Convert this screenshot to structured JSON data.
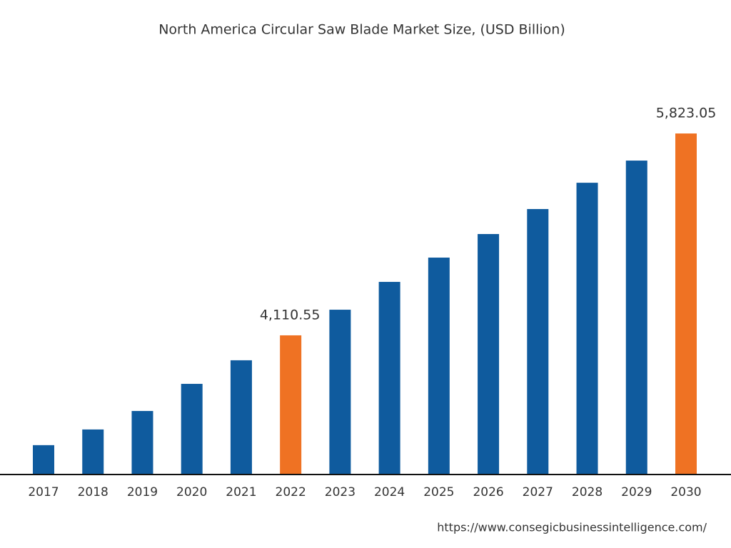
{
  "chart_data": {
    "type": "bar",
    "title": "North America Circular Saw Blade Market Size, (USD Billion)",
    "categories": [
      "2017",
      "2018",
      "2019",
      "2020",
      "2021",
      "2022",
      "2023",
      "2024",
      "2025",
      "2026",
      "2027",
      "2028",
      "2029",
      "2030"
    ],
    "values": [
      3179,
      3312,
      3469,
      3699,
      3899,
      4110.55,
      4328,
      4564,
      4770,
      4970,
      5182,
      5405,
      5593,
      5823.05
    ],
    "value_labels": [
      null,
      null,
      null,
      null,
      null,
      "4,110.55",
      null,
      null,
      null,
      null,
      null,
      null,
      null,
      "5,823.05"
    ],
    "colors": [
      "#0f5b9e",
      "#0f5b9e",
      "#0f5b9e",
      "#0f5b9e",
      "#0f5b9e",
      "#ef7223",
      "#0f5b9e",
      "#0f5b9e",
      "#0f5b9e",
      "#0f5b9e",
      "#0f5b9e",
      "#0f5b9e",
      "#0f5b9e",
      "#ef7223"
    ],
    "ylim": [
      2930,
      6350
    ],
    "source": "https://www.consegicbusinessintelligence.com/"
  }
}
